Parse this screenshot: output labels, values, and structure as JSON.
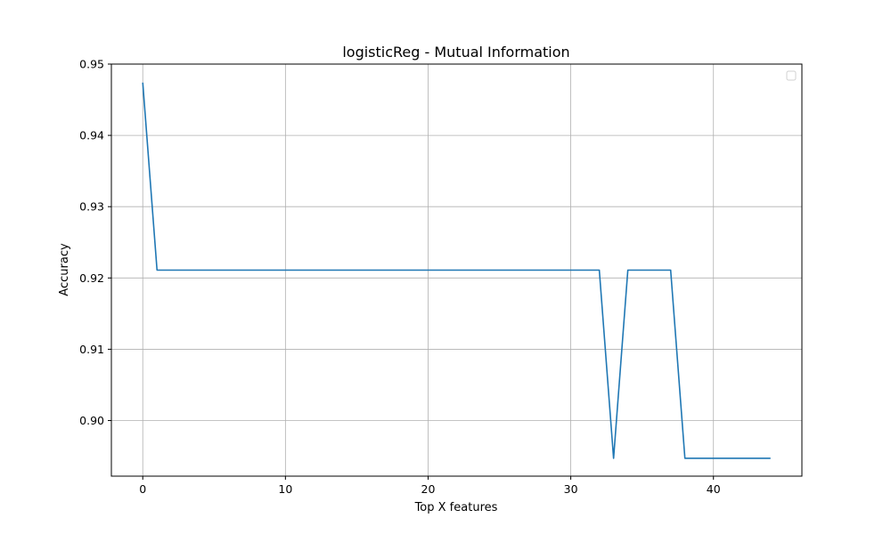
{
  "chart_data": {
    "type": "line",
    "title": "logisticReg - Mutual Information",
    "xlabel": "Top X features",
    "ylabel": "Accuracy",
    "xlim": [
      -2.2,
      46.2
    ],
    "ylim": [
      0.8922,
      0.95
    ],
    "xticks": [
      0,
      10,
      20,
      30,
      40
    ],
    "xtick_labels": [
      "0",
      "10",
      "20",
      "30",
      "40"
    ],
    "yticks": [
      0.9,
      0.91,
      0.92,
      0.93,
      0.94,
      0.95
    ],
    "ytick_labels": [
      "0.90",
      "0.91",
      "0.92",
      "0.93",
      "0.94",
      "0.95"
    ],
    "grid": true,
    "legend": "top-right, empty",
    "series": [
      {
        "color": "#1f77b4",
        "x": [
          0,
          1,
          2,
          3,
          4,
          5,
          6,
          7,
          8,
          9,
          10,
          11,
          12,
          13,
          14,
          15,
          16,
          17,
          18,
          19,
          20,
          21,
          22,
          23,
          24,
          25,
          26,
          27,
          28,
          29,
          30,
          31,
          32,
          33,
          34,
          35,
          36,
          37,
          38,
          39,
          40,
          41,
          42,
          43,
          44
        ],
        "values": [
          0.9474,
          0.9211,
          0.9211,
          0.9211,
          0.9211,
          0.9211,
          0.9211,
          0.9211,
          0.9211,
          0.9211,
          0.9211,
          0.9211,
          0.9211,
          0.9211,
          0.9211,
          0.9211,
          0.9211,
          0.9211,
          0.9211,
          0.9211,
          0.9211,
          0.9211,
          0.9211,
          0.9211,
          0.9211,
          0.9211,
          0.9211,
          0.9211,
          0.9211,
          0.9211,
          0.9211,
          0.9211,
          0.9211,
          0.8947,
          0.9211,
          0.9211,
          0.9211,
          0.9211,
          0.8947,
          0.8947,
          0.8947,
          0.8947,
          0.8947,
          0.8947,
          0.8947
        ]
      }
    ]
  }
}
